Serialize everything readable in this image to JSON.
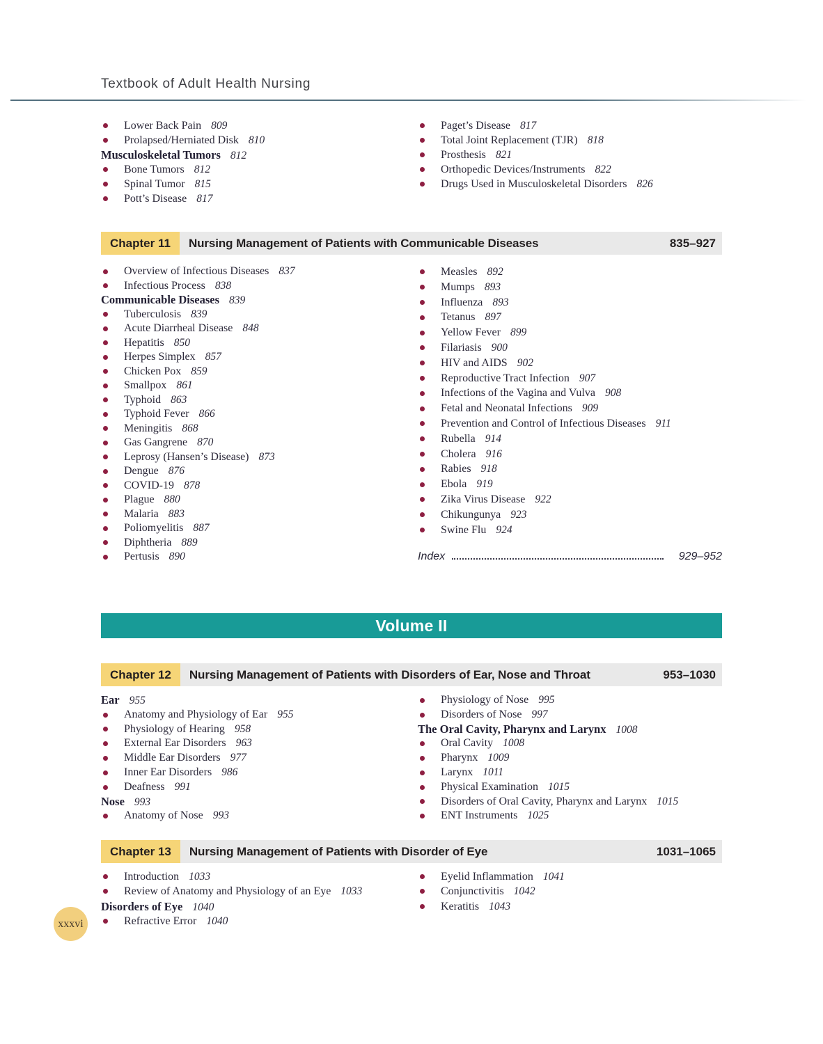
{
  "header": {
    "title": "Textbook of Adult Health Nursing"
  },
  "page_badge": "xxxvi",
  "volume_banner": "Volume II",
  "colors": {
    "text_color": "#2b2839",
    "bullet_color": "#8e1f42",
    "chapter_label_bg": "#f6d577",
    "chapter_bar_bg": "#e9e9e9",
    "banner_bg": "#189b97",
    "badge_bg": "#f2cf7e"
  },
  "top_section": {
    "left": [
      {
        "t": "bullet",
        "text": "Lower Back Pain",
        "page": "809"
      },
      {
        "t": "bullet",
        "text": "Prolapsed/Herniated Disk",
        "page": "810"
      },
      {
        "t": "heading",
        "text": "Musculoskeletal Tumors",
        "page": "812"
      },
      {
        "t": "bullet",
        "text": "Bone Tumors",
        "page": "812"
      },
      {
        "t": "bullet",
        "text": "Spinal Tumor",
        "page": "815"
      },
      {
        "t": "bullet",
        "text": "Pott’s Disease",
        "page": "817"
      }
    ],
    "right": [
      {
        "t": "bullet",
        "text": "Paget’s Disease",
        "page": "817"
      },
      {
        "t": "bullet",
        "text": "Total Joint Replacement (TJR)",
        "page": "818"
      },
      {
        "t": "bullet",
        "text": "Prosthesis",
        "page": "821"
      },
      {
        "t": "bullet",
        "text": "Orthopedic Devices/Instruments",
        "page": "822"
      },
      {
        "t": "bullet",
        "text": "Drugs Used in Musculoskeletal Disorders",
        "page": "826"
      }
    ]
  },
  "chapters": [
    {
      "label": "Chapter 11",
      "title": "Nursing Management of Patients with Communicable Diseases",
      "range": "835–927",
      "left": [
        {
          "t": "bullet",
          "text": "Overview of Infectious Diseases",
          "page": "837"
        },
        {
          "t": "bullet",
          "text": "Infectious Process",
          "page": "838"
        },
        {
          "t": "heading",
          "text": "Communicable Diseases",
          "page": "839"
        },
        {
          "t": "bullet",
          "text": "Tuberculosis",
          "page": "839"
        },
        {
          "t": "bullet",
          "text": "Acute Diarrheal Disease",
          "page": "848"
        },
        {
          "t": "bullet",
          "text": "Hepatitis",
          "page": "850"
        },
        {
          "t": "bullet",
          "text": "Herpes Simplex",
          "page": "857"
        },
        {
          "t": "bullet",
          "text": "Chicken Pox",
          "page": "859"
        },
        {
          "t": "bullet",
          "text": "Smallpox",
          "page": "861"
        },
        {
          "t": "bullet",
          "text": "Typhoid",
          "page": "863"
        },
        {
          "t": "bullet",
          "text": "Typhoid Fever",
          "page": "866"
        },
        {
          "t": "bullet",
          "text": "Meningitis",
          "page": "868"
        },
        {
          "t": "bullet",
          "text": "Gas Gangrene",
          "page": "870"
        },
        {
          "t": "bullet",
          "text": "Leprosy (Hansen’s Disease)",
          "page": "873"
        },
        {
          "t": "bullet",
          "text": "Dengue",
          "page": "876"
        },
        {
          "t": "bullet",
          "text": "COVID-19",
          "page": "878"
        },
        {
          "t": "bullet",
          "text": "Plague",
          "page": "880"
        },
        {
          "t": "bullet",
          "text": "Malaria",
          "page": "883"
        },
        {
          "t": "bullet",
          "text": "Poliomyelitis",
          "page": "887"
        },
        {
          "t": "bullet",
          "text": "Diphtheria",
          "page": "889"
        },
        {
          "t": "bullet",
          "text": "Pertusis",
          "page": "890"
        }
      ],
      "right": [
        {
          "t": "bullet",
          "text": "Measles",
          "page": "892"
        },
        {
          "t": "bullet",
          "text": "Mumps",
          "page": "893"
        },
        {
          "t": "bullet",
          "text": "Influenza",
          "page": "893"
        },
        {
          "t": "bullet",
          "text": "Tetanus",
          "page": "897"
        },
        {
          "t": "bullet",
          "text": "Yellow Fever",
          "page": "899"
        },
        {
          "t": "bullet",
          "text": "Filariasis",
          "page": "900"
        },
        {
          "t": "bullet",
          "text": "HIV and AIDS",
          "page": "902"
        },
        {
          "t": "bullet",
          "text": "Reproductive Tract Infection",
          "page": "907"
        },
        {
          "t": "bullet",
          "text": "Infections of the Vagina and Vulva",
          "page": "908"
        },
        {
          "t": "bullet",
          "text": "Fetal and Neonatal Infections",
          "page": "909"
        },
        {
          "t": "bullet",
          "text": "Prevention and Control of Infectious Diseases",
          "page": "911"
        },
        {
          "t": "bullet",
          "text": "Rubella",
          "page": "914"
        },
        {
          "t": "bullet",
          "text": "Cholera",
          "page": "916"
        },
        {
          "t": "bullet",
          "text": "Rabies",
          "page": "918"
        },
        {
          "t": "bullet",
          "text": "Ebola",
          "page": "919"
        },
        {
          "t": "bullet",
          "text": "Zika Virus Disease",
          "page": "922"
        },
        {
          "t": "bullet",
          "text": "Chikungunya",
          "page": "923"
        },
        {
          "t": "bullet",
          "text": "Swine Flu",
          "page": "924"
        },
        {
          "t": "index",
          "text": "Index",
          "page": "929–952"
        }
      ]
    },
    {
      "label": "Chapter 12",
      "title": "Nursing Management of Patients with Disorders of Ear, Nose and Throat",
      "range": "953–1030",
      "left": [
        {
          "t": "heading",
          "text": "Ear",
          "page": "955"
        },
        {
          "t": "bullet",
          "text": "Anatomy and Physiology of Ear",
          "page": "955"
        },
        {
          "t": "bullet",
          "text": "Physiology of Hearing",
          "page": "958"
        },
        {
          "t": "bullet",
          "text": "External Ear Disorders",
          "page": "963"
        },
        {
          "t": "bullet",
          "text": "Middle Ear Disorders",
          "page": "977"
        },
        {
          "t": "bullet",
          "text": "Inner Ear Disorders",
          "page": "986"
        },
        {
          "t": "bullet",
          "text": "Deafness",
          "page": "991"
        },
        {
          "t": "heading",
          "text": "Nose",
          "page": "993"
        },
        {
          "t": "bullet",
          "text": "Anatomy of Nose",
          "page": "993"
        }
      ],
      "right": [
        {
          "t": "bullet",
          "text": "Physiology of Nose",
          "page": "995"
        },
        {
          "t": "bullet",
          "text": "Disorders of Nose",
          "page": "997"
        },
        {
          "t": "heading",
          "text": "The Oral Cavity, Pharynx and Larynx",
          "page": "1008"
        },
        {
          "t": "bullet",
          "text": "Oral Cavity",
          "page": "1008"
        },
        {
          "t": "bullet",
          "text": "Pharynx",
          "page": "1009"
        },
        {
          "t": "bullet",
          "text": "Larynx",
          "page": "1011"
        },
        {
          "t": "bullet",
          "text": "Physical Examination",
          "page": "1015"
        },
        {
          "t": "bullet",
          "text": "Disorders of Oral Cavity, Pharynx and Larynx",
          "page": "1015"
        },
        {
          "t": "bullet",
          "text": "ENT Instruments",
          "page": "1025"
        }
      ]
    },
    {
      "label": "Chapter 13",
      "title": "Nursing Management of Patients with Disorder of Eye",
      "range": "1031–1065",
      "left": [
        {
          "t": "bullet",
          "text": "Introduction",
          "page": "1033"
        },
        {
          "t": "bullet",
          "text": "Review of Anatomy and Physiology of an Eye",
          "page": "1033"
        },
        {
          "t": "heading",
          "text": "Disorders of Eye",
          "page": "1040"
        },
        {
          "t": "bullet",
          "text": "Refractive Error",
          "page": "1040"
        }
      ],
      "right": [
        {
          "t": "bullet",
          "text": "Eyelid Inflammation",
          "page": "1041"
        },
        {
          "t": "bullet",
          "text": "Conjunctivitis",
          "page": "1042"
        },
        {
          "t": "bullet",
          "text": "Keratitis",
          "page": "1043"
        }
      ]
    }
  ]
}
